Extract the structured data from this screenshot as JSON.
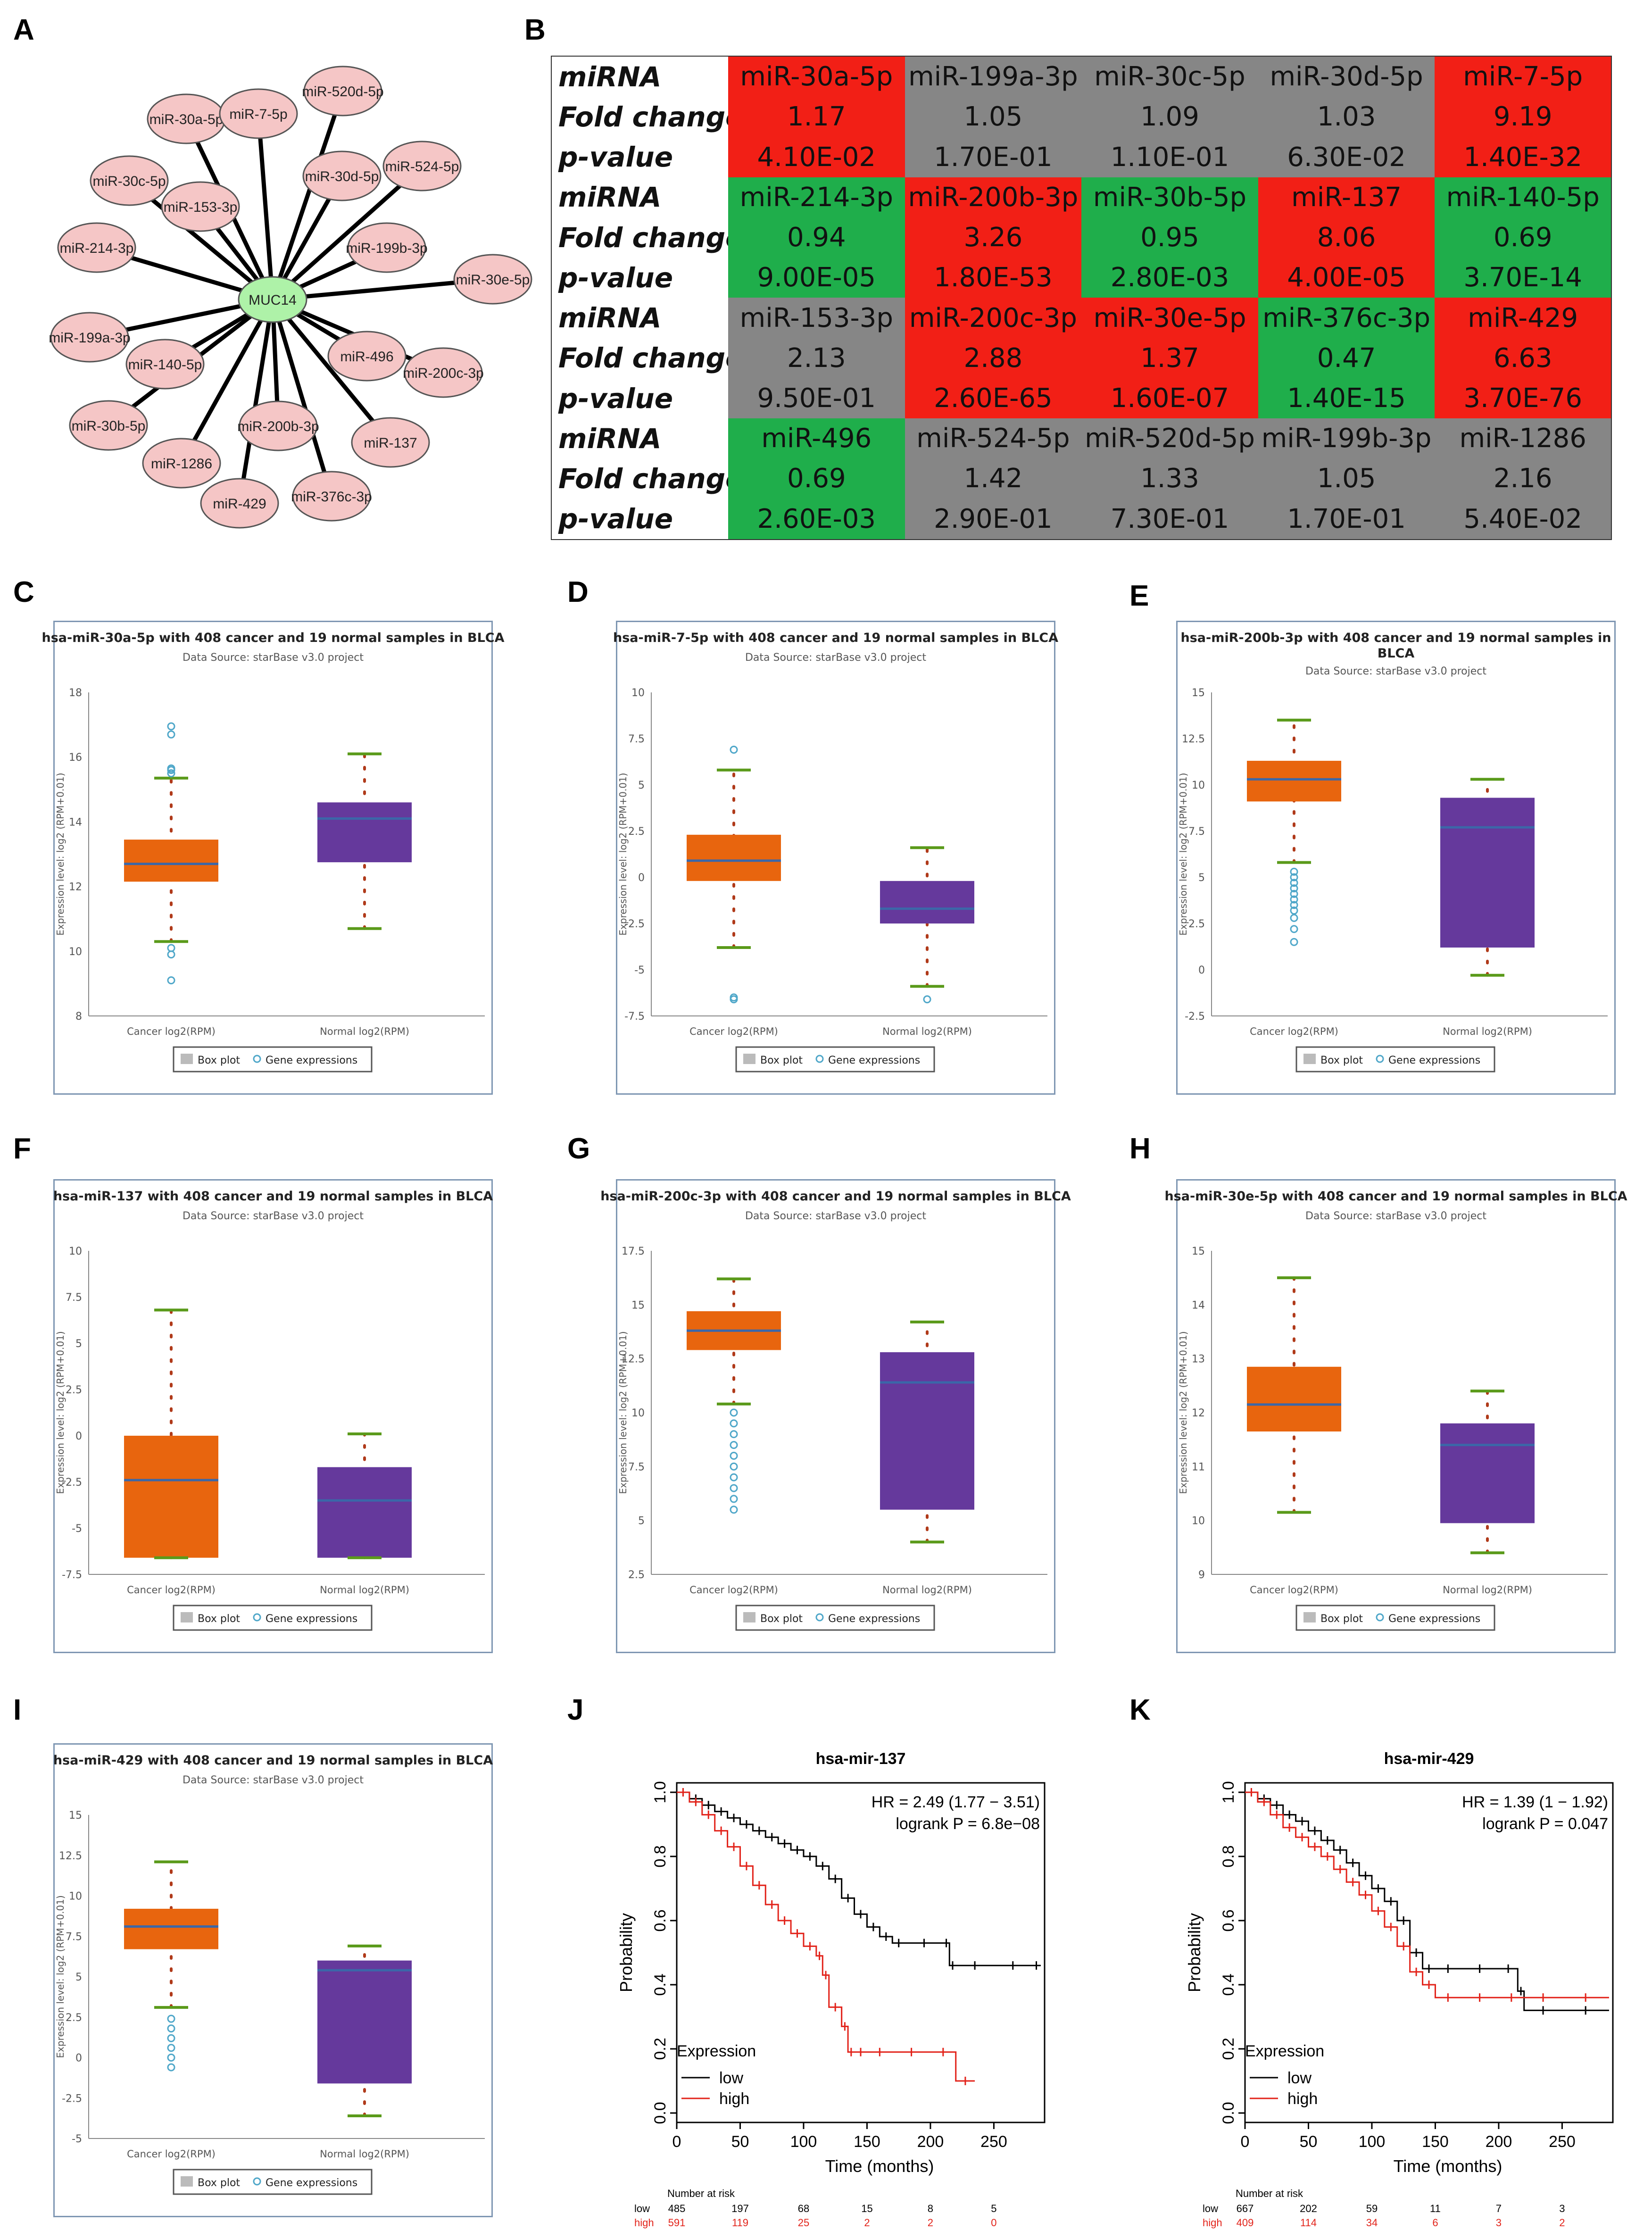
{
  "panel_labels": [
    "A",
    "B",
    "C",
    "D",
    "E",
    "F",
    "G",
    "H",
    "I",
    "J",
    "K"
  ],
  "network": {
    "center": "MUC14",
    "nodes": [
      "miR-30a-5p",
      "miR-7-5p",
      "miR-520d-5p",
      "miR-30c-5p",
      "miR-153-3p",
      "miR-30d-5p",
      "miR-524-5p",
      "miR-214-3p",
      "miR-199b-3p",
      "miR-30e-5p",
      "miR-199a-3p",
      "miR-140-5p",
      "miR-496",
      "miR-200c-3p",
      "miR-30b-5p",
      "miR-200b-3p",
      "miR-137",
      "miR-1286",
      "miR-429",
      "miR-376c-3p"
    ],
    "colors": {
      "center": "#aef2a8",
      "node": "#f5c6c6",
      "edge": "#000000"
    }
  },
  "table": {
    "row_labels": {
      "mirna": "miRNA",
      "fold": "Fold change",
      "p": "p-value"
    },
    "groups": [
      {
        "cells": [
          {
            "mirna": "miR-30a-5p",
            "fold": "1.17",
            "p": "4.10E-02",
            "color": "red"
          },
          {
            "mirna": "miR-199a-3p",
            "fold": "1.05",
            "p": "1.70E-01",
            "color": "gray"
          },
          {
            "mirna": "miR-30c-5p",
            "fold": "1.09",
            "p": "1.10E-01",
            "color": "gray"
          },
          {
            "mirna": "miR-30d-5p",
            "fold": "1.03",
            "p": "6.30E-02",
            "color": "gray"
          },
          {
            "mirna": "miR-7-5p",
            "fold": "9.19",
            "p": "1.40E-32",
            "color": "red"
          }
        ]
      },
      {
        "cells": [
          {
            "mirna": "miR-214-3p",
            "fold": "0.94",
            "p": "9.00E-05",
            "color": "green"
          },
          {
            "mirna": "miR-200b-3p",
            "fold": "3.26",
            "p": "1.80E-53",
            "color": "red"
          },
          {
            "mirna": "miR-30b-5p",
            "fold": "0.95",
            "p": "2.80E-03",
            "color": "green"
          },
          {
            "mirna": "miR-137",
            "fold": "8.06",
            "p": "4.00E-05",
            "color": "red"
          },
          {
            "mirna": "miR-140-5p",
            "fold": "0.69",
            "p": "3.70E-14",
            "color": "green"
          }
        ]
      },
      {
        "cells": [
          {
            "mirna": "miR-153-3p",
            "fold": "2.13",
            "p": "9.50E-01",
            "color": "gray"
          },
          {
            "mirna": "miR-200c-3p",
            "fold": "2.88",
            "p": "2.60E-65",
            "color": "red"
          },
          {
            "mirna": "miR-30e-5p",
            "fold": "1.37",
            "p": "1.60E-07",
            "color": "red"
          },
          {
            "mirna": "miR-376c-3p",
            "fold": "0.47",
            "p": "1.40E-15",
            "color": "green"
          },
          {
            "mirna": "miR-429",
            "fold": "6.63",
            "p": "3.70E-76",
            "color": "red"
          }
        ]
      },
      {
        "cells": [
          {
            "mirna": "miR-496",
            "fold": "0.69",
            "p": "2.60E-03",
            "color": "green"
          },
          {
            "mirna": "miR-524-5p",
            "fold": "1.42",
            "p": "2.90E-01",
            "color": "gray"
          },
          {
            "mirna": "miR-520d-5p",
            "fold": "1.33",
            "p": "7.30E-01",
            "color": "gray"
          },
          {
            "mirna": "miR-199b-3p",
            "fold": "1.05",
            "p": "1.70E-01",
            "color": "gray"
          },
          {
            "mirna": "miR-1286",
            "fold": "2.16",
            "p": "5.40E-02",
            "color": "gray"
          }
        ]
      }
    ]
  },
  "boxplot_common": {
    "subtitle": "Data Source: starBase v3.0 project",
    "ylabel": "Expression level: log2 (RPM+0.01)",
    "categories": [
      "Cancer log2(RPM)",
      "Normal log2(RPM)"
    ],
    "legend": [
      "Box plot",
      "Gene expressions"
    ],
    "colors": {
      "cancer": "#e8650e",
      "normal": "#65399c",
      "median": "#3b67a8",
      "whisker": "#5a9a1a",
      "dots": "#b03a1a",
      "outlier": "#4fa7c9",
      "frame": "#7f97b3"
    }
  },
  "chart_data": [
    {
      "panel": "C",
      "type": "box",
      "title": "hsa-miR-30a-5p with 408 cancer and 19 normal samples in BLCA",
      "ylim": [
        8,
        18
      ],
      "yticks": [
        "8",
        "10",
        "12",
        "14",
        "16",
        "18"
      ],
      "series": [
        {
          "name": "Cancer log2(RPM)",
          "whislo": 10.3,
          "q1": 12.15,
          "med": 12.7,
          "q3": 13.45,
          "whishi": 15.35,
          "outliers": [
            10.1,
            9.9,
            9.1,
            15.5,
            15.6,
            15.65,
            16.7,
            16.95
          ]
        },
        {
          "name": "Normal log2(RPM)",
          "whislo": 10.7,
          "q1": 12.75,
          "med": 14.1,
          "q3": 14.6,
          "whishi": 16.1,
          "outliers": []
        }
      ]
    },
    {
      "panel": "D",
      "type": "box",
      "title": "hsa-miR-7-5p with 408 cancer and 19 normal samples in BLCA",
      "ylim": [
        -7.5,
        10
      ],
      "yticks": [
        "-7.5",
        "-5",
        "-2.5",
        "0",
        "2.5",
        "5",
        "7.5",
        "10"
      ],
      "series": [
        {
          "name": "Cancer log2(RPM)",
          "whislo": -3.8,
          "q1": -0.2,
          "med": 0.9,
          "q3": 2.3,
          "whishi": 5.8,
          "outliers": [
            -6.5,
            -6.6,
            6.9
          ]
        },
        {
          "name": "Normal log2(RPM)",
          "whislo": -5.9,
          "q1": -2.5,
          "med": -1.7,
          "q3": -0.2,
          "whishi": 1.6,
          "outliers": [
            -6.6
          ]
        }
      ]
    },
    {
      "panel": "E",
      "type": "box",
      "title": "hsa-miR-200b-3p with 408 cancer and 19 normal samples in BLCA",
      "ylim": [
        -2.5,
        15
      ],
      "yticks": [
        "-2.5",
        "0",
        "2.5",
        "5",
        "7.5",
        "10",
        "12.5",
        "15"
      ],
      "series": [
        {
          "name": "Cancer log2(RPM)",
          "whislo": 5.8,
          "q1": 9.1,
          "med": 10.3,
          "q3": 11.3,
          "whishi": 13.5,
          "outliers": [
            1.5,
            2.2,
            2.8,
            3.2,
            3.5,
            3.8,
            4.1,
            4.4,
            4.7,
            5.0,
            5.3
          ]
        },
        {
          "name": "Normal log2(RPM)",
          "whislo": -0.3,
          "q1": 1.2,
          "med": 7.7,
          "q3": 9.3,
          "whishi": 10.3,
          "outliers": []
        }
      ]
    },
    {
      "panel": "F",
      "type": "box",
      "title": "hsa-miR-137 with 408 cancer and 19 normal samples in BLCA",
      "ylim": [
        -7.5,
        10
      ],
      "yticks": [
        "-7.5",
        "-5",
        "-2.5",
        "0",
        "2.5",
        "5",
        "7.5",
        "10"
      ],
      "series": [
        {
          "name": "Cancer log2(RPM)",
          "whislo": -6.6,
          "q1": -6.6,
          "med": -2.4,
          "q3": 0.0,
          "whishi": 6.8,
          "outliers": []
        },
        {
          "name": "Normal log2(RPM)",
          "whislo": -6.6,
          "q1": -6.6,
          "med": -3.5,
          "q3": -1.7,
          "whishi": 0.1,
          "outliers": []
        }
      ]
    },
    {
      "panel": "G",
      "type": "box",
      "title": "hsa-miR-200c-3p with 408 cancer and 19 normal samples in BLCA",
      "ylim": [
        2.5,
        17.5
      ],
      "yticks": [
        "2.5",
        "5",
        "7.5",
        "10",
        "12.5",
        "15",
        "17.5"
      ],
      "series": [
        {
          "name": "Cancer log2(RPM)",
          "whislo": 10.4,
          "q1": 12.9,
          "med": 13.8,
          "q3": 14.7,
          "whishi": 16.2,
          "outliers": [
            5.5,
            6.0,
            6.5,
            7.0,
            7.5,
            8.0,
            8.5,
            9.0,
            9.5,
            10.0
          ]
        },
        {
          "name": "Normal log2(RPM)",
          "whislo": 4.0,
          "q1": 5.5,
          "med": 11.4,
          "q3": 12.8,
          "whishi": 14.2,
          "outliers": []
        }
      ]
    },
    {
      "panel": "H",
      "type": "box",
      "title": "hsa-miR-30e-5p with 408 cancer and 19 normal samples in BLCA",
      "ylim": [
        9,
        15
      ],
      "yticks": [
        "9",
        "10",
        "11",
        "12",
        "13",
        "14",
        "15"
      ],
      "series": [
        {
          "name": "Cancer log2(RPM)",
          "whislo": 10.15,
          "q1": 11.65,
          "med": 12.15,
          "q3": 12.85,
          "whishi": 14.5,
          "outliers": []
        },
        {
          "name": "Normal log2(RPM)",
          "whislo": 9.4,
          "q1": 9.95,
          "med": 11.4,
          "q3": 11.8,
          "whishi": 12.4,
          "outliers": []
        }
      ]
    },
    {
      "panel": "I",
      "type": "box",
      "title": "hsa-miR-429 with 408 cancer and 19 normal samples in BLCA",
      "ylim": [
        -5,
        15
      ],
      "yticks": [
        "-5",
        "-2.5",
        "0",
        "2.5",
        "5",
        "7.5",
        "10",
        "12.5",
        "15"
      ],
      "series": [
        {
          "name": "Cancer log2(RPM)",
          "whislo": 3.1,
          "q1": 6.7,
          "med": 8.1,
          "q3": 9.2,
          "whishi": 12.1,
          "outliers": [
            -0.6,
            0.0,
            0.6,
            1.2,
            1.8,
            2.4
          ]
        },
        {
          "name": "Normal log2(RPM)",
          "whislo": -3.6,
          "q1": -1.6,
          "med": 5.4,
          "q3": 6.0,
          "whishi": 6.9,
          "outliers": []
        }
      ]
    },
    {
      "panel": "J",
      "type": "line",
      "title": "hsa-mir-137",
      "xlabel": "Time (months)",
      "ylabel": "Probability",
      "xlim": [
        0,
        290
      ],
      "ylim": [
        0,
        1
      ],
      "xticks": [
        "0",
        "50",
        "100",
        "150",
        "200",
        "250"
      ],
      "yticks": [
        "0.0",
        "0.2",
        "0.4",
        "0.6",
        "0.8",
        "1.0"
      ],
      "hr_text": "HR = 2.49 (1.77 − 3.51)",
      "logrank_text": "logrank P = 6.8e−08",
      "legend_title": "Expression",
      "series": [
        {
          "name": "low",
          "color": "#000000",
          "x": [
            0,
            10,
            20,
            30,
            40,
            50,
            60,
            70,
            80,
            90,
            100,
            110,
            120,
            130,
            140,
            150,
            160,
            170,
            180,
            210,
            215,
            220,
            250,
            280,
            287
          ],
          "y": [
            1.0,
            0.98,
            0.96,
            0.94,
            0.92,
            0.9,
            0.88,
            0.86,
            0.84,
            0.82,
            0.8,
            0.77,
            0.73,
            0.67,
            0.62,
            0.58,
            0.55,
            0.53,
            0.53,
            0.53,
            0.46,
            0.46,
            0.46,
            0.46,
            0.46
          ]
        },
        {
          "name": "high",
          "color": "#e2231a",
          "x": [
            0,
            10,
            20,
            30,
            40,
            50,
            60,
            70,
            80,
            90,
            100,
            110,
            115,
            120,
            130,
            135,
            140,
            150,
            170,
            200,
            220,
            235
          ],
          "y": [
            1.0,
            0.97,
            0.93,
            0.88,
            0.83,
            0.77,
            0.71,
            0.65,
            0.6,
            0.56,
            0.52,
            0.49,
            0.43,
            0.33,
            0.27,
            0.19,
            0.19,
            0.19,
            0.19,
            0.19,
            0.1,
            0.1
          ]
        }
      ],
      "risk": {
        "header": "Number at risk",
        "rows": [
          {
            "label": "low",
            "values": [
              "485",
              "197",
              "68",
              "15",
              "8",
              "5"
            ],
            "color": "#000000"
          },
          {
            "label": "high",
            "values": [
              "591",
              "119",
              "25",
              "2",
              "2",
              "0"
            ],
            "color": "#e2231a"
          }
        ]
      }
    },
    {
      "panel": "K",
      "type": "line",
      "title": "hsa-mir-429",
      "xlabel": "Time (months)",
      "ylabel": "Probability",
      "xlim": [
        0,
        290
      ],
      "ylim": [
        0,
        1
      ],
      "xticks": [
        "0",
        "50",
        "100",
        "150",
        "200",
        "250"
      ],
      "yticks": [
        "0.0",
        "0.2",
        "0.4",
        "0.6",
        "0.8",
        "1.0"
      ],
      "hr_text": "HR = 1.39 (1 − 1.92)",
      "logrank_text": "logrank P = 0.047",
      "legend_title": "Expression",
      "series": [
        {
          "name": "low",
          "color": "#000000",
          "x": [
            0,
            10,
            20,
            30,
            40,
            50,
            60,
            70,
            80,
            90,
            100,
            110,
            120,
            130,
            140,
            150,
            170,
            200,
            215,
            220,
            250,
            287
          ],
          "y": [
            1.0,
            0.98,
            0.96,
            0.93,
            0.91,
            0.88,
            0.85,
            0.82,
            0.78,
            0.74,
            0.7,
            0.66,
            0.6,
            0.5,
            0.45,
            0.45,
            0.45,
            0.45,
            0.38,
            0.32,
            0.32,
            0.32
          ]
        },
        {
          "name": "high",
          "color": "#e2231a",
          "x": [
            0,
            10,
            20,
            30,
            40,
            50,
            60,
            70,
            80,
            90,
            100,
            110,
            120,
            130,
            140,
            150,
            170,
            200,
            220,
            250,
            287
          ],
          "y": [
            1.0,
            0.97,
            0.93,
            0.89,
            0.86,
            0.83,
            0.8,
            0.76,
            0.72,
            0.68,
            0.63,
            0.58,
            0.52,
            0.44,
            0.4,
            0.36,
            0.36,
            0.36,
            0.36,
            0.36,
            0.36
          ]
        }
      ],
      "risk": {
        "header": "Number at risk",
        "rows": [
          {
            "label": "low",
            "values": [
              "667",
              "202",
              "59",
              "11",
              "7",
              "3"
            ],
            "color": "#000000"
          },
          {
            "label": "high",
            "values": [
              "409",
              "114",
              "34",
              "6",
              "3",
              "2"
            ],
            "color": "#e2231a"
          }
        ]
      }
    }
  ]
}
